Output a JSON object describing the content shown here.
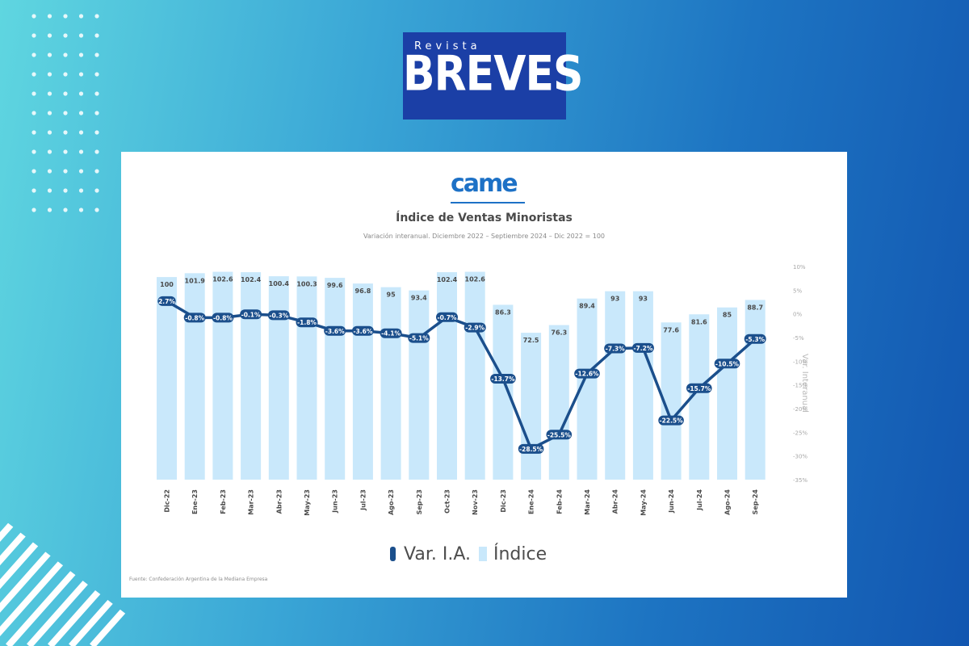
{
  "brand": {
    "small_text": "Revista",
    "big_text": "BREVES",
    "bg_color": "#1b3fa6"
  },
  "card": {
    "logo_text": "came",
    "source": "Fuente: Confederación Argentina de la Mediana Empresa"
  },
  "chart_data": {
    "type": "bar",
    "title": "Índice de Ventas Minoristas",
    "subtitle": "Variación interanual. Diciembre 2022 – Septiembre 2024 – Dic 2022 = 100",
    "categories": [
      "Dic-22",
      "Ene-23",
      "Feb-23",
      "Mar-23",
      "Abr-23",
      "May-23",
      "Jun-23",
      "Jul-23",
      "Ago-23",
      "Sep-23",
      "Oct-23",
      "Nov-23",
      "Dic-23",
      "Ene-24",
      "Feb-24",
      "Mar-24",
      "Abr-24",
      "May-24",
      "Jun-24",
      "Jul-24",
      "Ago-24",
      "Sep-24"
    ],
    "index_labels": [
      "100",
      "101.9",
      "102.6",
      "102.4",
      "100.4",
      "100.3",
      "99.6",
      "96.8",
      "95",
      "93.4",
      "102.4",
      "102.6",
      "86.3",
      "72.5",
      "76.3",
      "89.4",
      "93",
      "93",
      "77.6",
      "81.6",
      "85",
      "88.7"
    ],
    "series": [
      {
        "name": "Índice",
        "type": "bar",
        "color": "#c9e8fb",
        "values": [
          100,
          101.9,
          102.6,
          102.4,
          100.4,
          100.3,
          99.6,
          96.8,
          95,
          93.4,
          102.4,
          102.6,
          86.3,
          72.5,
          76.3,
          89.4,
          93,
          93,
          77.6,
          81.6,
          85,
          88.7
        ]
      },
      {
        "name": "Var. I.A.",
        "type": "line",
        "color": "#1b4f8c",
        "axis": "right",
        "values": [
          2.7,
          -0.8,
          -0.8,
          -0.1,
          -0.3,
          -1.8,
          -3.6,
          -3.6,
          -4.1,
          -5.1,
          -0.7,
          -2.9,
          -13.7,
          -28.5,
          -25.5,
          -12.6,
          -7.3,
          -7.2,
          -22.5,
          -15.7,
          -10.5,
          -5.3
        ],
        "labels": [
          "2.7%",
          "-0.8%",
          "-0.8%",
          "-0.1%",
          "-0.3%",
          "-1.8%",
          "-3.6%",
          "-3.6%",
          "-4.1%",
          "-5.1%",
          "-0.7%",
          "-2.9%",
          "-13.7%",
          "-28.5%",
          "-25.5%",
          "-12.6%",
          "-7.3%",
          "-7.2%",
          "-22.5%",
          "-15.7%",
          "-10.5%",
          "-5.3%"
        ]
      }
    ],
    "y_left_range": [
      0,
      110
    ],
    "y_right_range": [
      -35,
      10
    ],
    "y_right_ticks": [
      "10%",
      "5%",
      "0%",
      "-5%",
      "-10%",
      "-15%",
      "-20%",
      "-25%",
      "-30%",
      "-35%"
    ],
    "y_right_label": "Var. Interanual",
    "legend": {
      "line_label": "Var. I.A.",
      "bar_label": "Índice",
      "placement": "bottom-center"
    },
    "grid": false
  }
}
